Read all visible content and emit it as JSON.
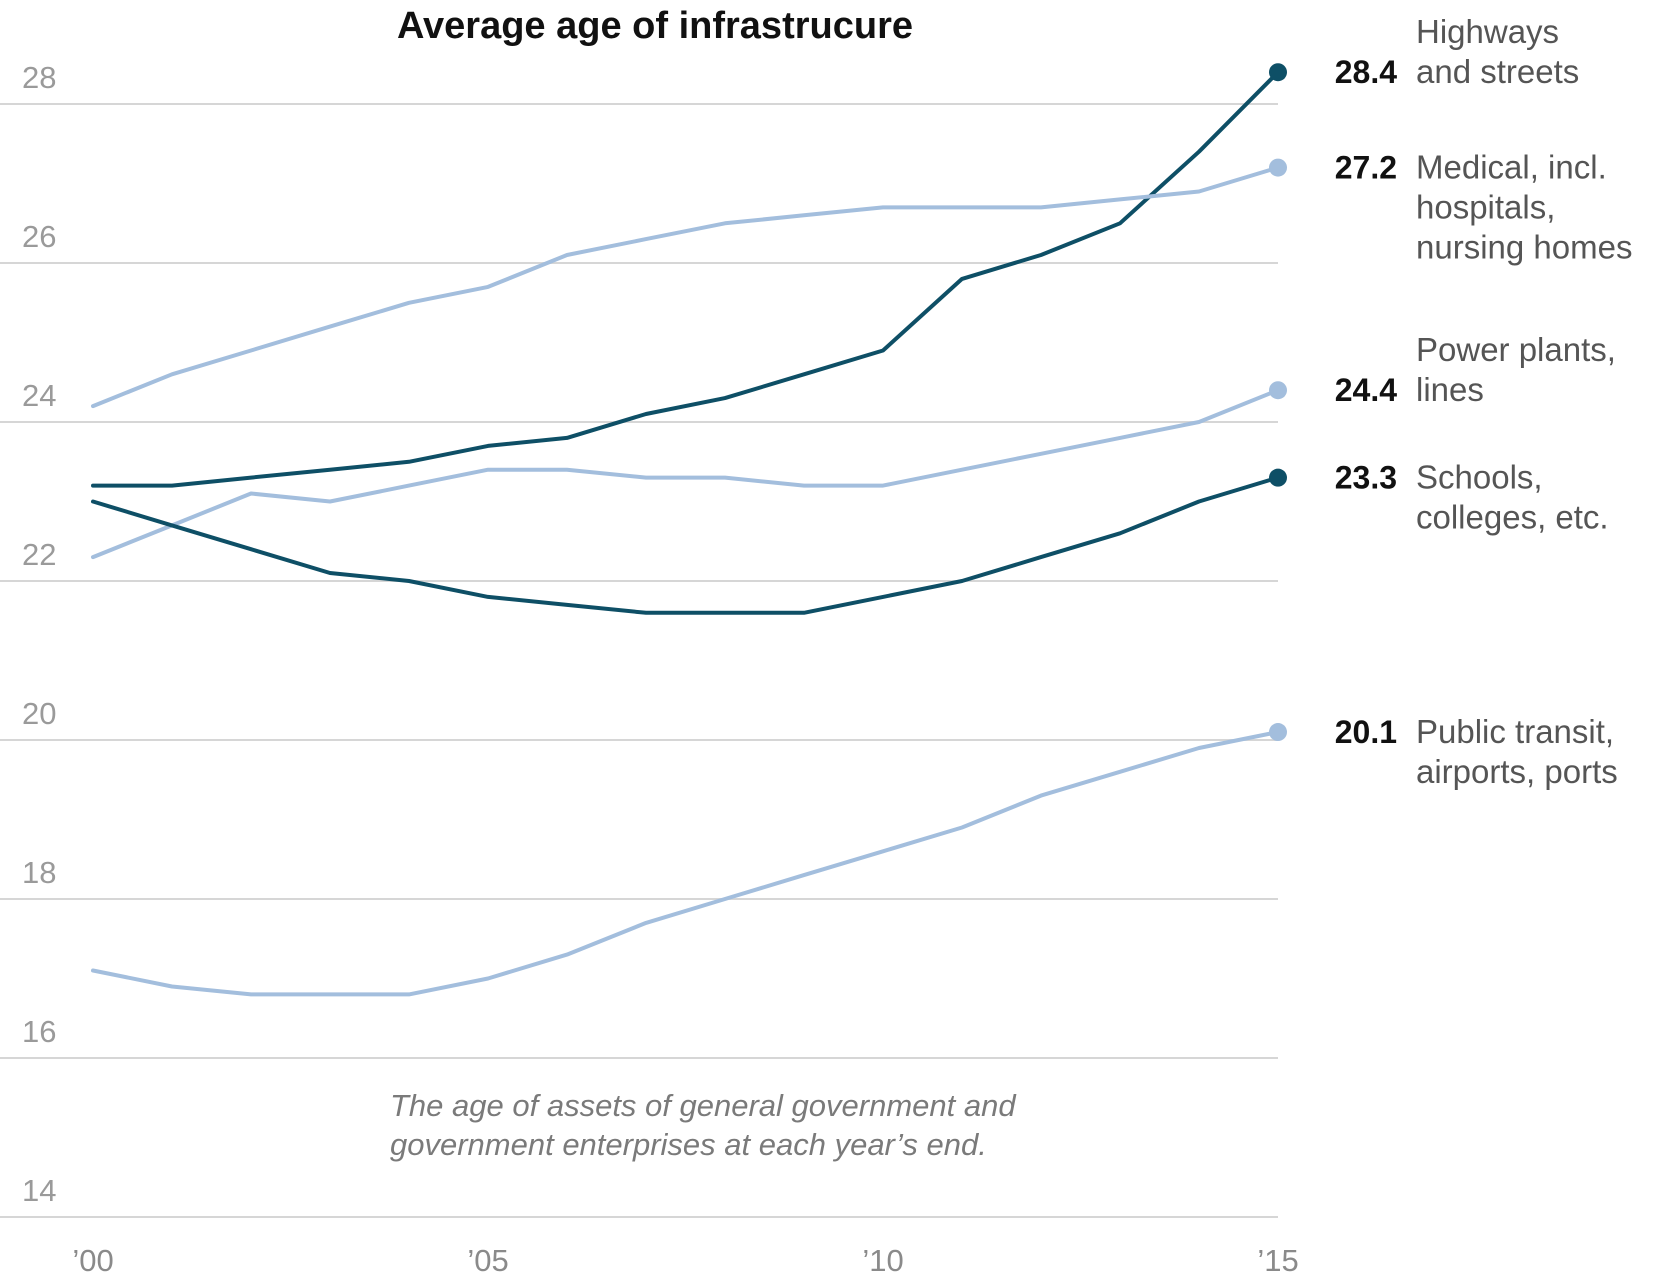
{
  "chart_data": {
    "type": "line",
    "title": "Average age of infrastrucure",
    "note": [
      "The age of assets of general government and",
      "government enterprises at each year’s end."
    ],
    "x": [
      2000,
      2001,
      2002,
      2003,
      2004,
      2005,
      2006,
      2007,
      2008,
      2009,
      2010,
      2011,
      2012,
      2013,
      2014,
      2015
    ],
    "xticks": [
      {
        "value": 2000,
        "label": "’00"
      },
      {
        "value": 2005,
        "label": "’05"
      },
      {
        "value": 2010,
        "label": "’10"
      },
      {
        "value": 2015,
        "label": "’15"
      }
    ],
    "yticks": [
      14,
      16,
      18,
      20,
      22,
      24,
      26,
      28
    ],
    "xlim": [
      2000,
      2015
    ],
    "ylim": [
      14,
      28.4
    ],
    "grid": true,
    "series": [
      {
        "name_lines": [
          "Highways",
          "and streets"
        ],
        "end_label": "28.4",
        "color": "#0e4f66",
        "values": [
          23.2,
          23.2,
          23.3,
          23.4,
          23.5,
          23.7,
          23.8,
          24.1,
          24.3,
          24.6,
          24.9,
          25.8,
          26.1,
          26.5,
          27.4,
          28.4
        ]
      },
      {
        "name_lines": [
          "Medical, incl.",
          "hospitals,",
          "nursing homes"
        ],
        "end_label": "27.2",
        "color": "#a3bedd",
        "values": [
          24.2,
          24.6,
          24.9,
          25.2,
          25.5,
          25.7,
          26.1,
          26.3,
          26.5,
          26.6,
          26.7,
          26.7,
          26.7,
          26.8,
          26.9,
          27.2
        ]
      },
      {
        "name_lines": [
          "Power plants,",
          "lines"
        ],
        "end_label": "24.4",
        "color": "#a3bedd",
        "values": [
          22.3,
          22.7,
          23.1,
          23.0,
          23.2,
          23.4,
          23.4,
          23.3,
          23.3,
          23.2,
          23.2,
          23.4,
          23.6,
          23.8,
          24.0,
          24.4
        ]
      },
      {
        "name_lines": [
          "Schools,",
          "colleges, etc."
        ],
        "end_label": "23.3",
        "color": "#0e4f66",
        "values": [
          23.0,
          22.7,
          22.4,
          22.1,
          22.0,
          21.8,
          21.7,
          21.6,
          21.6,
          21.6,
          21.8,
          22.0,
          22.3,
          22.6,
          23.0,
          23.3
        ]
      },
      {
        "name_lines": [
          "Public transit,",
          "airports, ports"
        ],
        "end_label": "20.1",
        "color": "#a3bedd",
        "values": [
          17.1,
          16.9,
          16.8,
          16.8,
          16.8,
          17.0,
          17.3,
          17.7,
          18.0,
          18.3,
          18.6,
          18.9,
          19.3,
          19.6,
          19.9,
          20.1
        ]
      }
    ]
  }
}
